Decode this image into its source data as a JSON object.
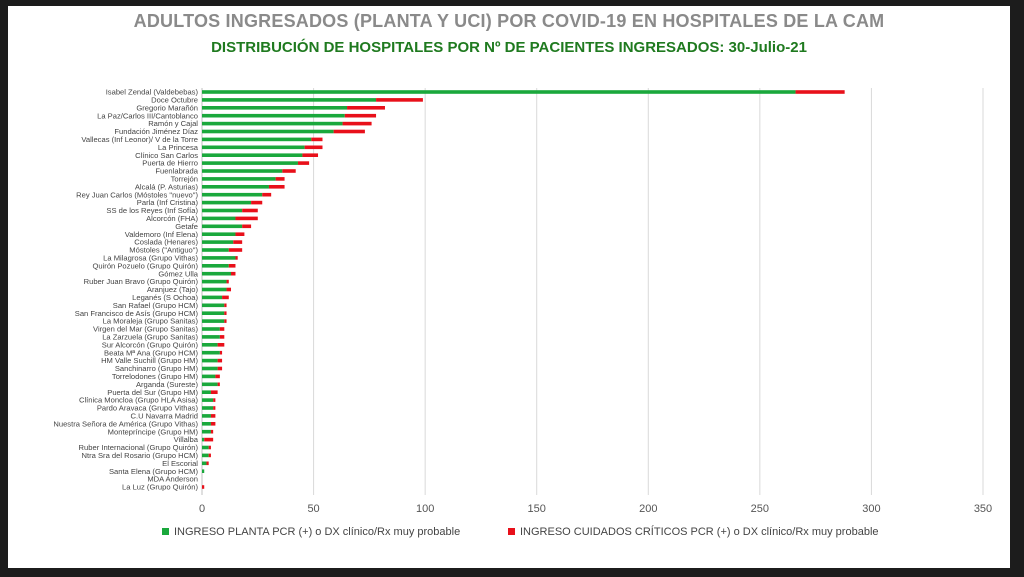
{
  "chart_data": {
    "type": "bar",
    "orientation": "horizontal",
    "stacked": true,
    "title": "ADULTOS INGRESADOS (PLANTA Y UCI) POR COVID-19 EN HOSPITALES DE LA CAM",
    "subtitle": "DISTRIBUCIÓN DE HOSPITALES POR Nº DE PACIENTES INGRESADOS: 30-Julio-21",
    "xlabel": "",
    "ylabel": "",
    "xlim": [
      0,
      350
    ],
    "xticks": [
      0,
      50,
      100,
      150,
      200,
      250,
      300,
      350
    ],
    "grid": true,
    "legend_position": "bottom",
    "categories": [
      "Isabel Zendal (Valdebebas)",
      "Doce Octubre",
      "Gregorio Marañón",
      "La Paz/Carlos III/Cantoblanco",
      "Ramón y Cajal",
      "Fundación Jiménez Díaz",
      "Vallecas (Inf Leonor)/ V de la Torre",
      "La Princesa",
      "Clínico San Carlos",
      "Puerta de Hierro",
      "Fuenlabrada",
      "Torrejón",
      "Alcalá (P. Asturias)",
      "Rey Juan Carlos (Móstoles \"nuevo\")",
      "Parla (Inf Cristina)",
      "SS de los Reyes (Inf Sofía)",
      "Alcorcón (FHA)",
      "Getafe",
      "Valdemoro (Inf Elena)",
      "Coslada (Henares)",
      "Móstoles (\"Antiguo\")",
      "La Milagrosa (Grupo Vithas)",
      "Quirón Pozuelo (Grupo Quirón)",
      "Gómez Ulla",
      "Ruber Juan Bravo (Grupo Quirón)",
      "Aranjuez (Tajo)",
      "Leganés (S Ochoa)",
      "San Rafael (Grupo HCM)",
      "San Francisco de Asís (Grupo HCM)",
      "La Moraleja (Grupo Sanitas)",
      "Virgen del Mar (Grupo Sanitas)",
      "La Zarzuela (Grupo Sanitas)",
      "Sur Alcorcón (Grupo Quirón)",
      "Beata Mª Ana (Grupo HCM)",
      "HM Valle Suchill (Grupo HM)",
      "Sanchinarro (Grupo HM)",
      "Torrelodones (Grupo HM)",
      "Arganda (Sureste)",
      "Puerta del Sur (Grupo HM)",
      "Clínica Moncloa (Grupo HLA Asisa)",
      "Pardo Aravaca (Grupo Vithas)",
      "C.U Navarra Madrid",
      "Nuestra Señora de América (Grupo Vithas)",
      "Montepríncipe (Grupo HM)",
      "Villalba",
      "Ruber Internacional (Grupo Quirón)",
      "Ntra Sra del Rosario (Grupo HCM)",
      "El Escorial",
      "Santa Elena (Grupo HCM)",
      "MDA Anderson",
      "La Luz (Grupo Quirón)"
    ],
    "series": [
      {
        "name": "INGRESO PLANTA PCR (+) o DX clínico/Rx muy probable",
        "color": "#1aa83c",
        "values": [
          266,
          78,
          65,
          64,
          63,
          59,
          49,
          46,
          45,
          43,
          36,
          33,
          30,
          27,
          22,
          18,
          15,
          18,
          15,
          14,
          12,
          15,
          12,
          13,
          11,
          11,
          9,
          10,
          10,
          10,
          8,
          8,
          7,
          8,
          7,
          7,
          6,
          7,
          4,
          5,
          5,
          4,
          4,
          4,
          1,
          3,
          3,
          2,
          1,
          0,
          0
        ]
      },
      {
        "name": "INGRESO CUIDADOS CRÍTICOS PCR (+) o DX clínico/Rx muy probable",
        "color": "#e8101a",
        "values": [
          22,
          21,
          17,
          14,
          13,
          14,
          5,
          8,
          7,
          5,
          6,
          4,
          7,
          4,
          5,
          7,
          10,
          4,
          4,
          4,
          6,
          1,
          3,
          2,
          1,
          2,
          3,
          1,
          1,
          1,
          2,
          2,
          3,
          1,
          2,
          2,
          2,
          1,
          3,
          1,
          1,
          2,
          2,
          1,
          4,
          1,
          1,
          1,
          0,
          0,
          1
        ]
      }
    ]
  }
}
